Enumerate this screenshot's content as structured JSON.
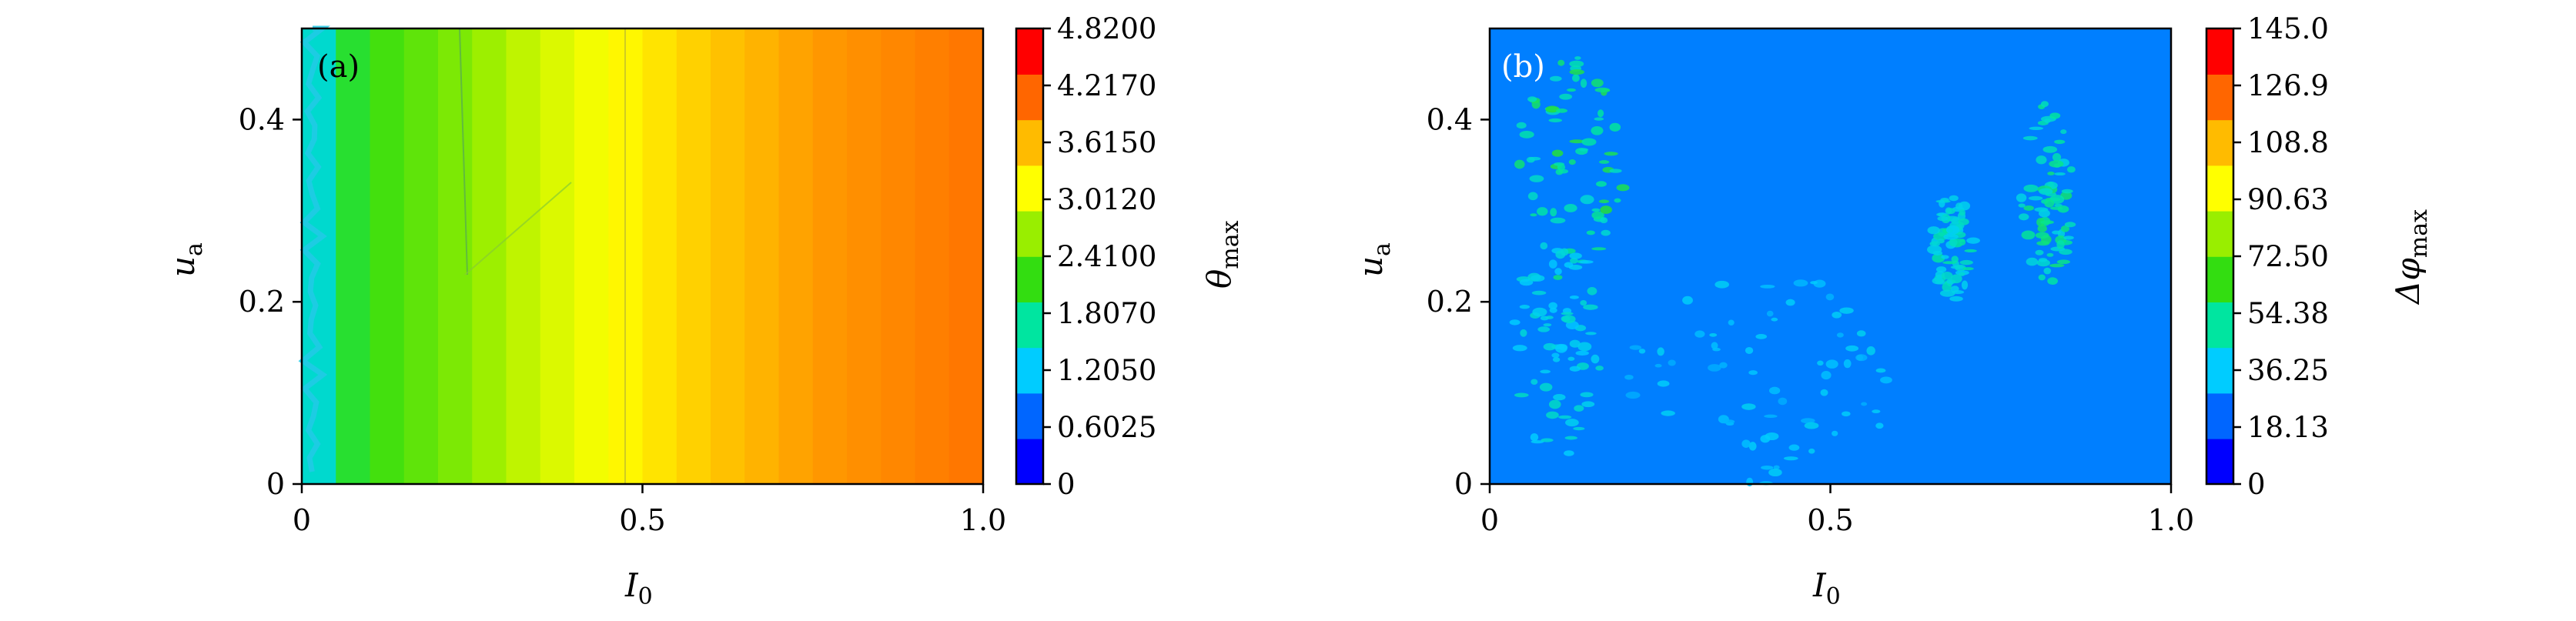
{
  "chart_data": [
    {
      "type": "heatmap",
      "panel_label": "(a)",
      "x": [
        0,
        0.05,
        0.1,
        0.15,
        0.2,
        0.25,
        0.3,
        0.35,
        0.4,
        0.45,
        0.5,
        0.55,
        0.6,
        0.65,
        0.7,
        0.75,
        0.8,
        0.85,
        0.9,
        0.95,
        1.0
      ],
      "values_by_x": [
        0.8,
        1.9,
        2.15,
        2.3,
        2.45,
        2.6,
        2.8,
        2.95,
        3.1,
        3.2,
        3.35,
        3.5,
        3.65,
        3.75,
        3.85,
        3.95,
        4.0,
        4.05,
        4.1,
        4.15,
        4.2
      ],
      "xlabel": "I",
      "xlabel_sub": "0",
      "ylabel": "u",
      "ylabel_sub": "a",
      "xlim": [
        0,
        1.0
      ],
      "ylim": [
        0,
        0.5
      ],
      "xticks": [
        "0",
        "0.5",
        "1.0"
      ],
      "xtick_values": [
        0,
        0.5,
        1.0
      ],
      "yticks": [
        "0",
        "0.2",
        "0.4"
      ],
      "ytick_values": [
        0,
        0.2,
        0.4
      ],
      "colorbar": {
        "label": "θ",
        "label_sub": "max",
        "range": [
          0,
          4.82
        ],
        "ticks": [
          "0",
          "0.6025",
          "1.2050",
          "1.8070",
          "2.4100",
          "3.0120",
          "3.6150",
          "4.2170",
          "4.8200"
        ]
      },
      "colors": [
        "#0000ff",
        "#0066ff",
        "#00ccff",
        "#00e5a0",
        "#33dd11",
        "#99ee00",
        "#ffff00",
        "#ffbb00",
        "#ff6600",
        "#ff0000"
      ]
    },
    {
      "type": "heatmap",
      "panel_label": "(b)",
      "background_value": 20,
      "xlabel": "I",
      "xlabel_sub": "0",
      "ylabel": "u",
      "ylabel_sub": "a",
      "xlim": [
        0,
        1.0
      ],
      "ylim": [
        0,
        0.5
      ],
      "xticks": [
        "0",
        "0.5",
        "1.0"
      ],
      "xtick_values": [
        0,
        0.5,
        1.0
      ],
      "yticks": [
        "0",
        "0.2",
        "0.4"
      ],
      "ytick_values": [
        0,
        0.2,
        0.4
      ],
      "colorbar": {
        "label": "Δφ",
        "label_sub": "max",
        "range": [
          0,
          145.0
        ],
        "ticks": [
          "0",
          "18.13",
          "36.25",
          "54.38",
          "72.50",
          "90.63",
          "108.8",
          "126.9",
          "145.0"
        ]
      },
      "hot_regions": [
        {
          "x": 0.12,
          "y": 0.35,
          "rx": 0.08,
          "ry": 0.13,
          "v": 55
        },
        {
          "x": 0.1,
          "y": 0.15,
          "rx": 0.07,
          "ry": 0.12,
          "v": 40
        },
        {
          "x": 0.82,
          "y": 0.32,
          "rx": 0.04,
          "ry": 0.1,
          "v": 50
        },
        {
          "x": 0.68,
          "y": 0.26,
          "rx": 0.03,
          "ry": 0.06,
          "v": 45
        },
        {
          "x": 0.4,
          "y": 0.12,
          "rx": 0.2,
          "ry": 0.12,
          "v": 33
        }
      ],
      "colors": [
        "#0000ff",
        "#0066ff",
        "#00ccff",
        "#00e5a0",
        "#33dd11",
        "#99ee00",
        "#ffff00",
        "#ffbb00",
        "#ff6600",
        "#ff0000"
      ]
    }
  ]
}
